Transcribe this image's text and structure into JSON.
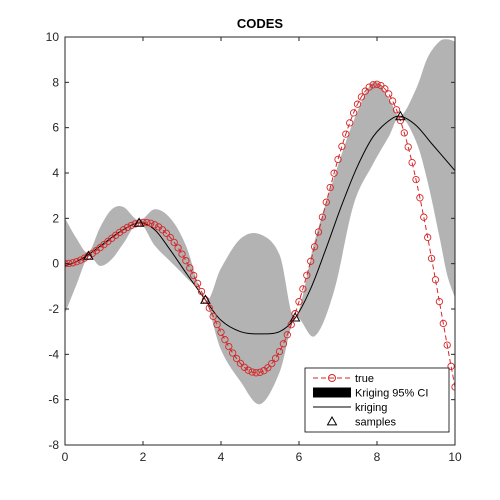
{
  "chart_data": {
    "type": "line",
    "title": "CODES",
    "xlabel": "",
    "ylabel": "",
    "xlim": [
      0,
      10
    ],
    "ylim": [
      -8,
      10
    ],
    "x_ticks": [
      0,
      2,
      4,
      6,
      8,
      10
    ],
    "y_ticks": [
      -8,
      -6,
      -4,
      -2,
      0,
      2,
      4,
      6,
      8,
      10
    ],
    "grid": false,
    "legend_position": "bottom-right",
    "legend": [
      {
        "key": "true",
        "label": "true"
      },
      {
        "key": "ci",
        "label": "Kriging 95% CI"
      },
      {
        "key": "kriging",
        "label": "kriging"
      },
      {
        "key": "samples",
        "label": "samples"
      }
    ],
    "series": [
      {
        "key": "ci",
        "style": "band",
        "color": "#b3b3b3",
        "x": [
          0.0,
          0.3,
          0.6,
          0.9,
          1.2,
          1.5,
          1.9,
          2.3,
          2.7,
          3.1,
          3.6,
          4.0,
          4.5,
          5.0,
          5.5,
          5.9,
          6.4,
          6.9,
          7.4,
          7.9,
          8.3,
          8.6,
          9.0,
          9.3,
          9.6,
          9.8,
          10.0
        ],
        "upper": [
          2.0,
          1.1,
          0.5,
          1.6,
          2.4,
          2.5,
          1.9,
          2.4,
          2.0,
          0.8,
          -1.6,
          -0.2,
          1.1,
          1.3,
          0.4,
          -2.4,
          1.0,
          3.8,
          6.3,
          8.0,
          7.3,
          6.5,
          7.7,
          9.1,
          9.8,
          9.9,
          9.8
        ],
        "lower": [
          -2.2,
          -0.9,
          0.3,
          -0.1,
          0.2,
          0.9,
          1.8,
          0.8,
          0.1,
          -0.6,
          -1.6,
          -3.8,
          -5.2,
          -6.2,
          -4.8,
          -2.4,
          -3.2,
          -1.2,
          2.6,
          4.4,
          5.6,
          6.5,
          5.4,
          3.6,
          1.2,
          -0.5,
          -1.5
        ]
      },
      {
        "key": "kriging",
        "style": "line",
        "color": "#000000",
        "x": [
          0.0,
          0.3,
          0.6,
          1.0,
          1.4,
          1.9,
          2.3,
          2.7,
          3.1,
          3.6,
          4.0,
          4.5,
          5.0,
          5.5,
          5.9,
          6.3,
          6.7,
          7.1,
          7.5,
          7.9,
          8.3,
          8.6,
          9.0,
          9.4,
          9.7,
          10.0
        ],
        "y": [
          -0.1,
          0.1,
          0.4,
          0.9,
          1.4,
          1.8,
          1.5,
          0.6,
          -0.4,
          -1.6,
          -2.5,
          -3.0,
          -3.1,
          -3.0,
          -2.4,
          -1.1,
          0.7,
          2.6,
          4.3,
          5.6,
          6.3,
          6.5,
          6.1,
          5.3,
          4.7,
          4.1
        ]
      },
      {
        "key": "true",
        "style": "line-markers",
        "color": "#d62728",
        "function": "x*sin(x)",
        "x_start": 0,
        "x_end": 10,
        "points": 101
      },
      {
        "key": "samples",
        "style": "markers",
        "color": "#000000",
        "x": [
          0.6,
          1.9,
          3.6,
          5.9,
          8.6
        ],
        "y": [
          0.34,
          1.8,
          -1.6,
          -2.38,
          6.5
        ]
      }
    ]
  }
}
